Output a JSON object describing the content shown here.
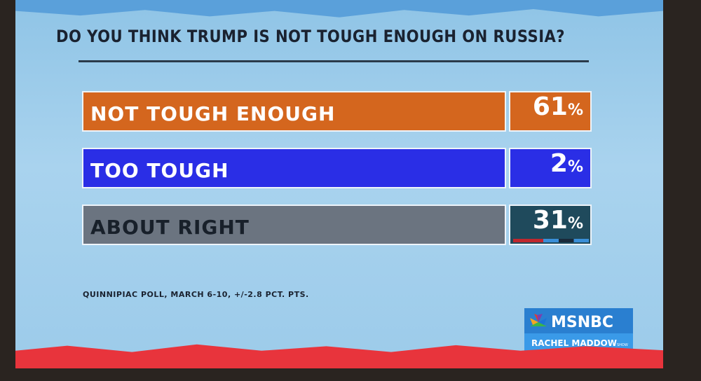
{
  "header": {
    "title": "DO YOU THINK TRUMP IS NOT TOUGH ENOUGH ON RUSSIA?"
  },
  "rows": [
    {
      "label": "NOT TOUGH ENOUGH",
      "value": "61",
      "unit": "%"
    },
    {
      "label": "TOO TOUGH",
      "value": "2",
      "unit": "%"
    },
    {
      "label": "ABOUT RIGHT",
      "value": "31",
      "unit": "%"
    }
  ],
  "source": "QUINNIPIAC POLL, MARCH 6-10, +/-2.8 PCT. PTS.",
  "logo": {
    "network": "MSNBC",
    "show": "RACHEL MADDOW",
    "show_suffix": "SHOW"
  }
}
